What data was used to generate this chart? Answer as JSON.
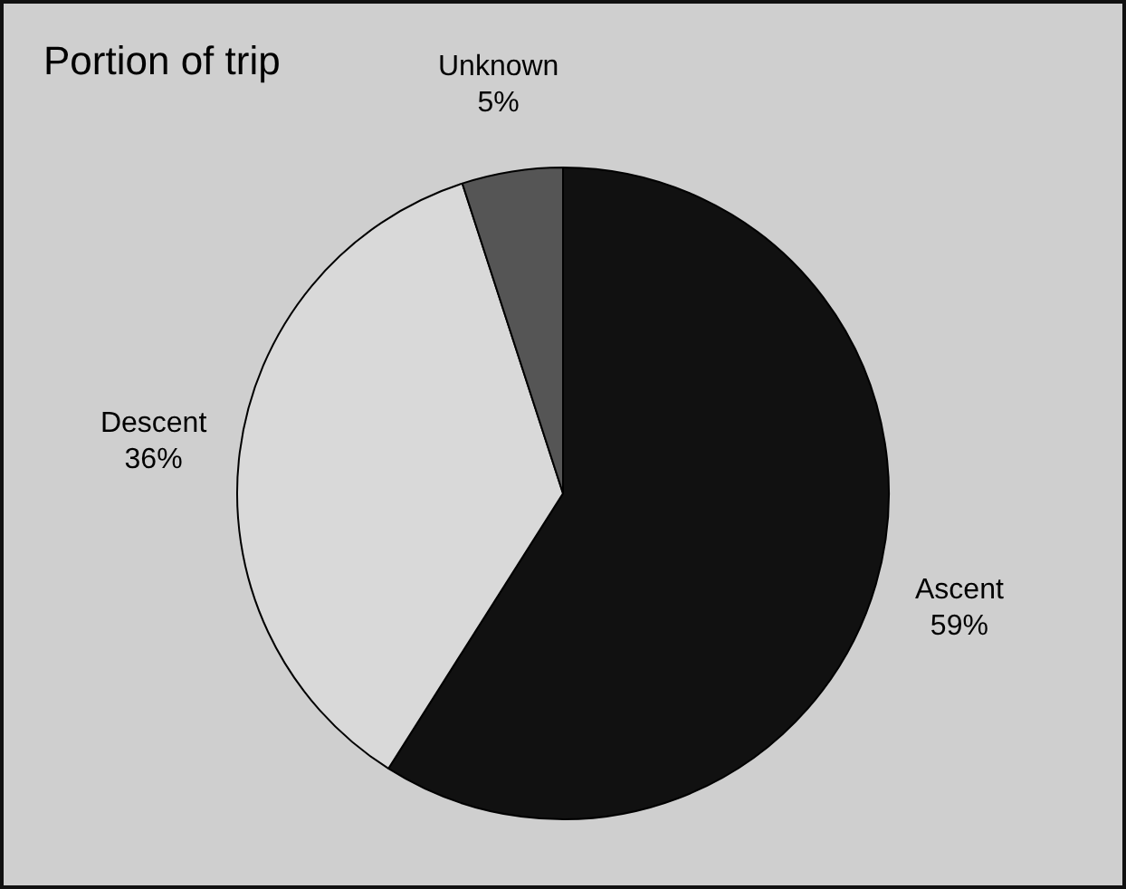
{
  "chart_data": {
    "type": "pie",
    "title": "Portion of trip",
    "categories": [
      "Ascent",
      "Descent",
      "Unknown"
    ],
    "values": [
      59,
      36,
      5
    ],
    "value_labels": [
      "59%",
      "36%",
      "5%"
    ],
    "colors": [
      "#111111",
      "#d9d9d9",
      "#555555"
    ],
    "legend": false
  }
}
